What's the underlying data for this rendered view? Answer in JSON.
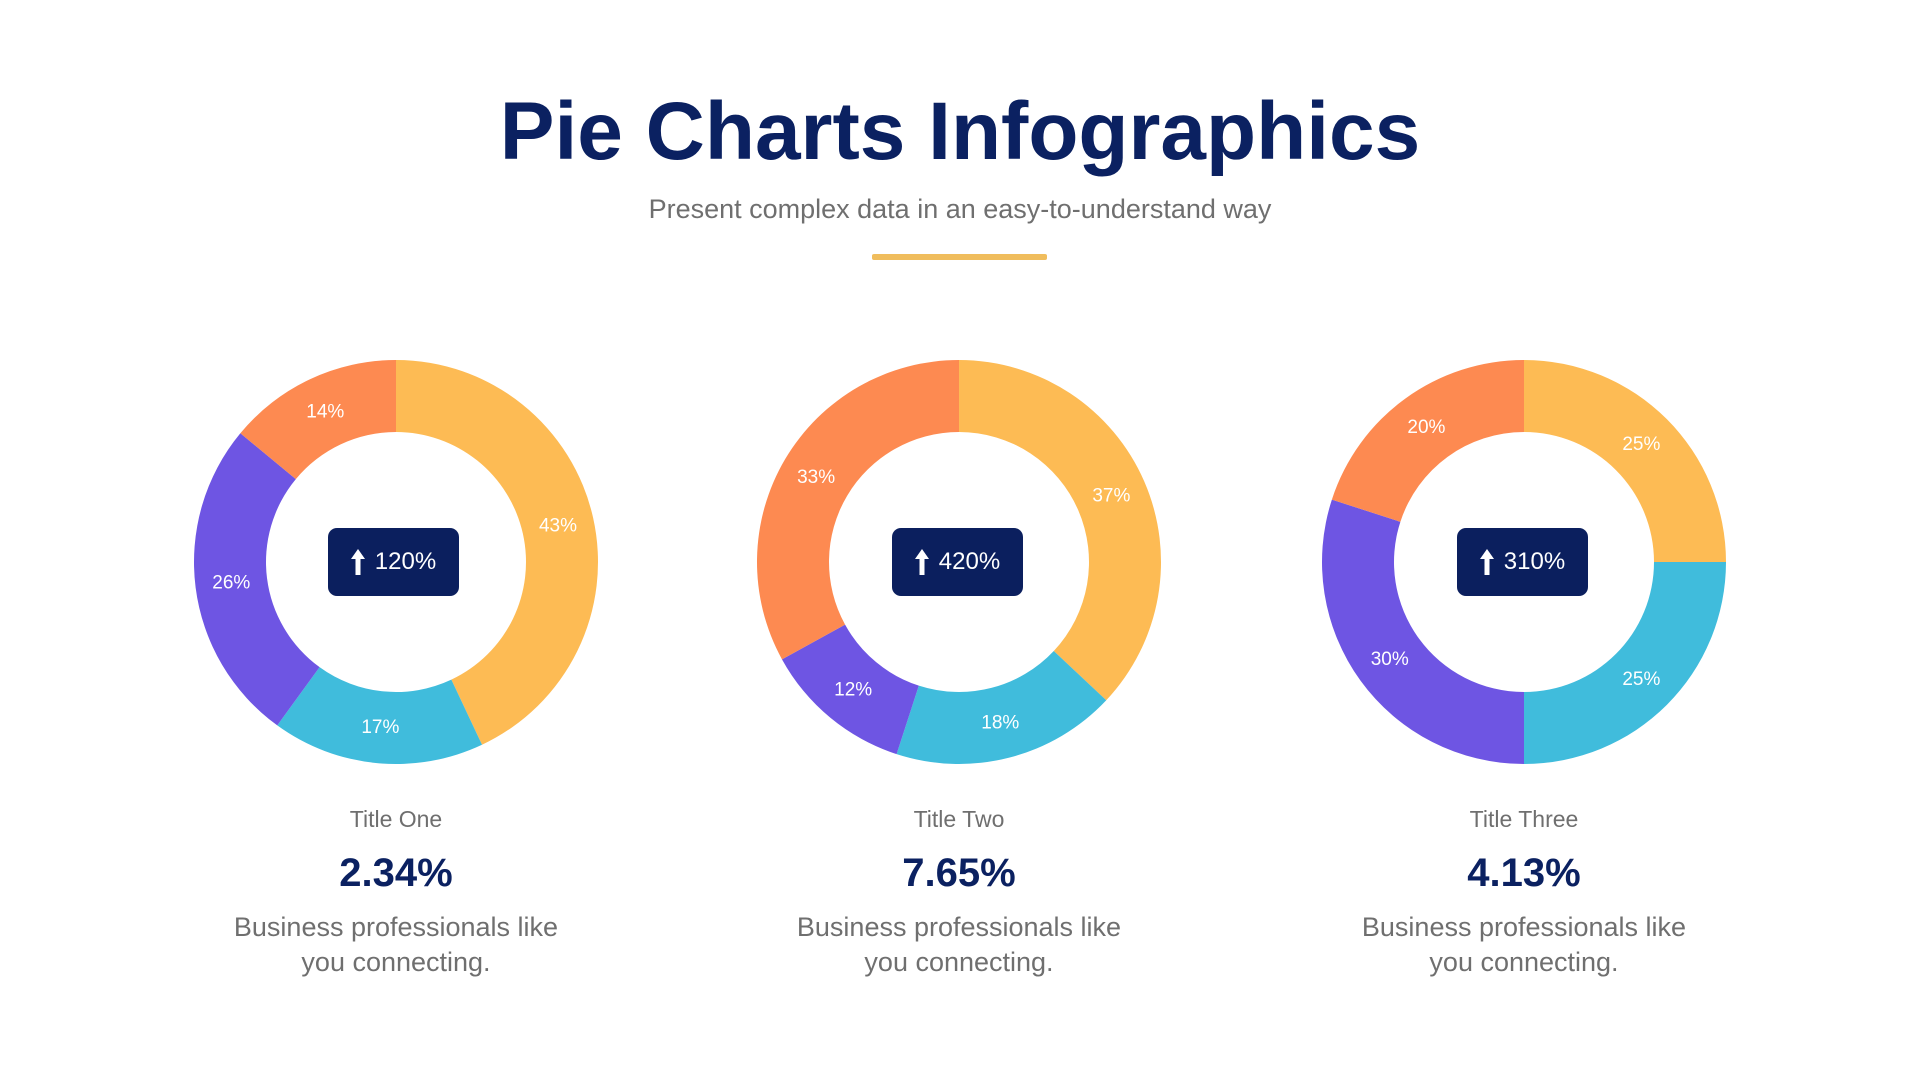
{
  "header": {
    "title": "Pie Charts Infographics",
    "subtitle": "Present complex data in an easy-to-understand way",
    "accent_color": "#f0bd5d"
  },
  "colors": {
    "yellow": "#fdbb54",
    "cyan": "#40bcdc",
    "purple": "#6e55e3",
    "orange": "#fd8a51",
    "navy": "#0b1f5e"
  },
  "columns": [
    {
      "badge": {
        "icon": "arrow-up-icon",
        "text": "120%"
      },
      "title": "Title One",
      "value": "2.34%",
      "desc_line1": "Business professionals like",
      "desc_line2": "you connecting."
    },
    {
      "badge": {
        "icon": "arrow-up-icon",
        "text": "420%"
      },
      "title": "Title Two",
      "value": "7.65%",
      "desc_line1": "Business professionals like",
      "desc_line2": "you connecting."
    },
    {
      "badge": {
        "icon": "arrow-up-icon",
        "text": "310%"
      },
      "title": "Title Three",
      "value": "4.13%",
      "desc_line1": "Business professionals like",
      "desc_line2": "you connecting."
    }
  ],
  "chart_data": [
    {
      "type": "pie",
      "variant": "donut",
      "title": "Title One",
      "center_label": "120%",
      "categories": [
        "Yellow",
        "Cyan",
        "Purple",
        "Orange"
      ],
      "values": [
        43,
        17,
        26,
        14
      ],
      "labels": [
        "43%",
        "17%",
        "26%",
        "14%"
      ],
      "colors": [
        "#fdbb54",
        "#40bcdc",
        "#6e55e3",
        "#fd8a51"
      ],
      "start_angle": 0,
      "direction": "clockwise"
    },
    {
      "type": "pie",
      "variant": "donut",
      "title": "Title Two",
      "center_label": "420%",
      "categories": [
        "Yellow",
        "Cyan",
        "Purple",
        "Orange"
      ],
      "values": [
        37,
        18,
        12,
        33
      ],
      "labels": [
        "37%",
        "18%",
        "12%",
        "33%"
      ],
      "colors": [
        "#fdbb54",
        "#40bcdc",
        "#6e55e3",
        "#fd8a51"
      ],
      "start_angle": 0,
      "direction": "clockwise"
    },
    {
      "type": "pie",
      "variant": "donut",
      "title": "Title Three",
      "center_label": "310%",
      "categories": [
        "Yellow",
        "Cyan",
        "Purple",
        "Orange"
      ],
      "values": [
        25,
        25,
        30,
        20
      ],
      "labels": [
        "25%",
        "25%",
        "30%",
        "20%"
      ],
      "colors": [
        "#fdbb54",
        "#40bcdc",
        "#6e55e3",
        "#fd8a51"
      ],
      "start_angle": 0,
      "direction": "clockwise"
    }
  ]
}
